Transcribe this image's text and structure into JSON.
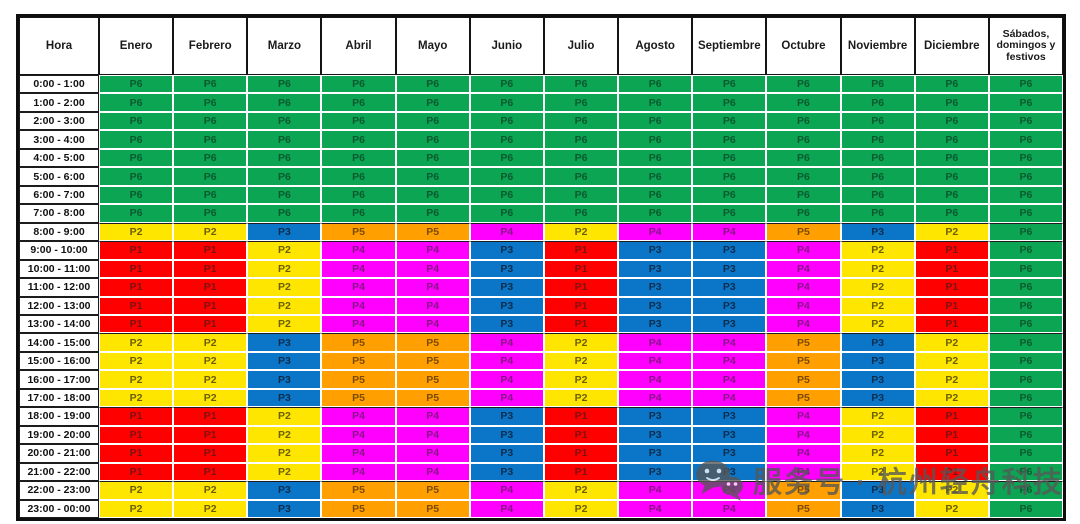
{
  "chart_data": {
    "type": "table",
    "columns": [
      "Hora",
      "Enero",
      "Febrero",
      "Marzo",
      "Abril",
      "Mayo",
      "Junio",
      "Julio",
      "Agosto",
      "Septiembre",
      "Octubre",
      "Noviembre",
      "Diciembre",
      "Sábados, domingos y festivos"
    ],
    "rows": [
      {
        "hora": "0:00 - 1:00",
        "values": [
          "P6",
          "P6",
          "P6",
          "P6",
          "P6",
          "P6",
          "P6",
          "P6",
          "P6",
          "P6",
          "P6",
          "P6",
          "P6"
        ]
      },
      {
        "hora": "1:00 - 2:00",
        "values": [
          "P6",
          "P6",
          "P6",
          "P6",
          "P6",
          "P6",
          "P6",
          "P6",
          "P6",
          "P6",
          "P6",
          "P6",
          "P6"
        ]
      },
      {
        "hora": "2:00 - 3:00",
        "values": [
          "P6",
          "P6",
          "P6",
          "P6",
          "P6",
          "P6",
          "P6",
          "P6",
          "P6",
          "P6",
          "P6",
          "P6",
          "P6"
        ]
      },
      {
        "hora": "3:00 - 4:00",
        "values": [
          "P6",
          "P6",
          "P6",
          "P6",
          "P6",
          "P6",
          "P6",
          "P6",
          "P6",
          "P6",
          "P6",
          "P6",
          "P6"
        ]
      },
      {
        "hora": "4:00 - 5:00",
        "values": [
          "P6",
          "P6",
          "P6",
          "P6",
          "P6",
          "P6",
          "P6",
          "P6",
          "P6",
          "P6",
          "P6",
          "P6",
          "P6"
        ]
      },
      {
        "hora": "5:00 - 6:00",
        "values": [
          "P6",
          "P6",
          "P6",
          "P6",
          "P6",
          "P6",
          "P6",
          "P6",
          "P6",
          "P6",
          "P6",
          "P6",
          "P6"
        ]
      },
      {
        "hora": "6:00 - 7:00",
        "values": [
          "P6",
          "P6",
          "P6",
          "P6",
          "P6",
          "P6",
          "P6",
          "P6",
          "P6",
          "P6",
          "P6",
          "P6",
          "P6"
        ]
      },
      {
        "hora": "7:00 - 8:00",
        "values": [
          "P6",
          "P6",
          "P6",
          "P6",
          "P6",
          "P6",
          "P6",
          "P6",
          "P6",
          "P6",
          "P6",
          "P6",
          "P6"
        ]
      },
      {
        "hora": "8:00 - 9:00",
        "values": [
          "P2",
          "P2",
          "P3",
          "P5",
          "P5",
          "P4",
          "P2",
          "P4",
          "P4",
          "P5",
          "P3",
          "P2",
          "P6"
        ]
      },
      {
        "hora": "9:00 - 10:00",
        "values": [
          "P1",
          "P1",
          "P2",
          "P4",
          "P4",
          "P3",
          "P1",
          "P3",
          "P3",
          "P4",
          "P2",
          "P1",
          "P6"
        ]
      },
      {
        "hora": "10:00 - 11:00",
        "values": [
          "P1",
          "P1",
          "P2",
          "P4",
          "P4",
          "P3",
          "P1",
          "P3",
          "P3",
          "P4",
          "P2",
          "P1",
          "P6"
        ]
      },
      {
        "hora": "11:00 - 12:00",
        "values": [
          "P1",
          "P1",
          "P2",
          "P4",
          "P4",
          "P3",
          "P1",
          "P3",
          "P3",
          "P4",
          "P2",
          "P1",
          "P6"
        ]
      },
      {
        "hora": "12:00 - 13:00",
        "values": [
          "P1",
          "P1",
          "P2",
          "P4",
          "P4",
          "P3",
          "P1",
          "P3",
          "P3",
          "P4",
          "P2",
          "P1",
          "P6"
        ]
      },
      {
        "hora": "13:00 - 14:00",
        "values": [
          "P1",
          "P1",
          "P2",
          "P4",
          "P4",
          "P3",
          "P1",
          "P3",
          "P3",
          "P4",
          "P2",
          "P1",
          "P6"
        ]
      },
      {
        "hora": "14:00 - 15:00",
        "values": [
          "P2",
          "P2",
          "P3",
          "P5",
          "P5",
          "P4",
          "P2",
          "P4",
          "P4",
          "P5",
          "P3",
          "P2",
          "P6"
        ]
      },
      {
        "hora": "15:00 - 16:00",
        "values": [
          "P2",
          "P2",
          "P3",
          "P5",
          "P5",
          "P4",
          "P2",
          "P4",
          "P4",
          "P5",
          "P3",
          "P2",
          "P6"
        ]
      },
      {
        "hora": "16:00 - 17:00",
        "values": [
          "P2",
          "P2",
          "P3",
          "P5",
          "P5",
          "P4",
          "P2",
          "P4",
          "P4",
          "P5",
          "P3",
          "P2",
          "P6"
        ]
      },
      {
        "hora": "17:00 - 18:00",
        "values": [
          "P2",
          "P2",
          "P3",
          "P5",
          "P5",
          "P4",
          "P2",
          "P4",
          "P4",
          "P5",
          "P3",
          "P2",
          "P6"
        ]
      },
      {
        "hora": "18:00 - 19:00",
        "values": [
          "P1",
          "P1",
          "P2",
          "P4",
          "P4",
          "P3",
          "P1",
          "P3",
          "P3",
          "P4",
          "P2",
          "P1",
          "P6"
        ]
      },
      {
        "hora": "19:00 - 20:00",
        "values": [
          "P1",
          "P1",
          "P2",
          "P4",
          "P4",
          "P3",
          "P1",
          "P3",
          "P3",
          "P4",
          "P2",
          "P1",
          "P6"
        ]
      },
      {
        "hora": "20:00 - 21:00",
        "values": [
          "P1",
          "P1",
          "P2",
          "P4",
          "P4",
          "P3",
          "P1",
          "P3",
          "P3",
          "P4",
          "P2",
          "P1",
          "P6"
        ]
      },
      {
        "hora": "21:00 - 22:00",
        "values": [
          "P1",
          "P1",
          "P2",
          "P4",
          "P4",
          "P3",
          "P1",
          "P3",
          "P3",
          "P4",
          "P2",
          "P1",
          "P6"
        ]
      },
      {
        "hora": "22:00 - 23:00",
        "values": [
          "P2",
          "P2",
          "P3",
          "P5",
          "P5",
          "P4",
          "P2",
          "P4",
          "P4",
          "P5",
          "P3",
          "P2",
          "P6"
        ]
      },
      {
        "hora": "23:00 - 00:00",
        "values": [
          "P2",
          "P2",
          "P3",
          "P5",
          "P5",
          "P4",
          "P2",
          "P4",
          "P4",
          "P5",
          "P3",
          "P2",
          "P6"
        ]
      }
    ]
  },
  "periods": {
    "P1": {
      "bg": "#FF0000",
      "fg": "#7E1111"
    },
    "P2": {
      "bg": "#FFE600",
      "fg": "#6B6000"
    },
    "P3": {
      "bg": "#0B76C8",
      "fg": "#0E2D4E"
    },
    "P4": {
      "bg": "#FF00FF",
      "fg": "#871387"
    },
    "P5": {
      "bg": "#FFA000",
      "fg": "#7C4A00"
    },
    "P6": {
      "bg": "#0CA554",
      "fg": "#0A5A2E"
    }
  },
  "watermark": {
    "icon": "wechat-chat-bubbles-icon",
    "text": "服务号 · 杭州轻舟科技",
    "color": "#575757"
  }
}
